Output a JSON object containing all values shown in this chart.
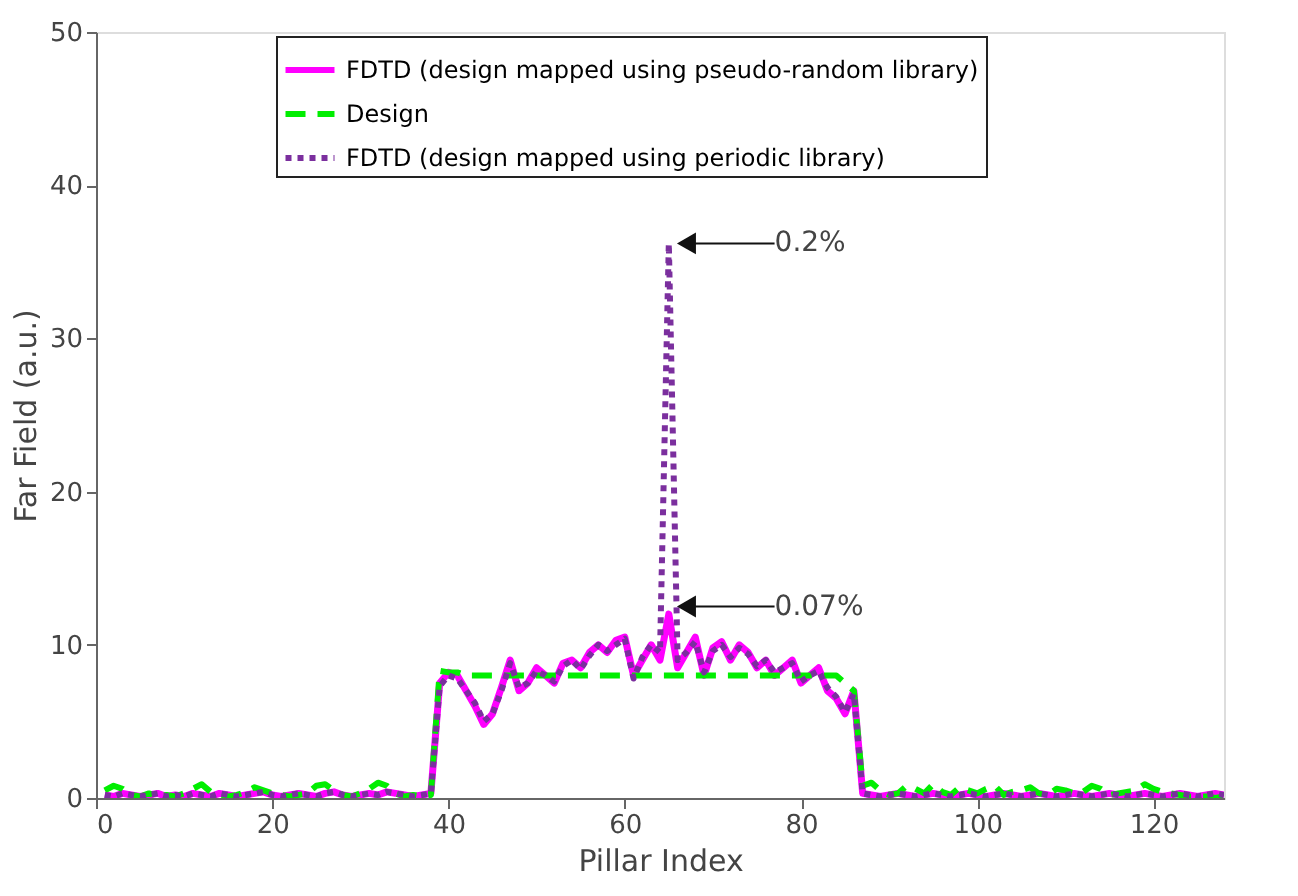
{
  "chart_data": {
    "type": "line",
    "xlabel": "Pillar Index",
    "ylabel": "Far Field (a.u.)",
    "xlim": [
      0,
      128
    ],
    "xticks": [
      0,
      20,
      40,
      60,
      80,
      100,
      120
    ],
    "ylim": [
      0,
      50
    ],
    "yticks": [
      0,
      10,
      20,
      30,
      40,
      50
    ],
    "grid": false,
    "legend": "top",
    "marker": "none",
    "x": [
      1,
      2,
      3,
      4,
      5,
      6,
      7,
      8,
      9,
      10,
      11,
      12,
      13,
      14,
      15,
      16,
      17,
      18,
      19,
      20,
      21,
      22,
      23,
      24,
      25,
      26,
      27,
      28,
      29,
      30,
      31,
      32,
      33,
      34,
      35,
      36,
      37,
      38,
      39,
      40,
      41,
      42,
      43,
      44,
      45,
      46,
      47,
      48,
      49,
      50,
      51,
      52,
      53,
      54,
      55,
      56,
      57,
      58,
      59,
      60,
      61,
      62,
      63,
      64,
      65,
      66,
      67,
      68,
      69,
      70,
      71,
      72,
      73,
      74,
      75,
      76,
      77,
      78,
      79,
      80,
      81,
      82,
      83,
      84,
      85,
      86,
      87,
      88,
      89,
      90,
      91,
      92,
      93,
      94,
      95,
      96,
      97,
      98,
      99,
      100,
      101,
      102,
      103,
      104,
      105,
      106,
      107,
      108,
      109,
      110,
      111,
      112,
      113,
      114,
      115,
      116,
      117,
      118,
      119,
      120,
      121,
      122,
      123,
      124,
      125,
      126,
      127,
      128
    ],
    "series": [
      {
        "name": "FDTD (design mapped using pseudo-random library)",
        "color": "#ff00ff",
        "line_style": "solid",
        "values": [
          0.2,
          0.1,
          0.3,
          0.2,
          0.1,
          0.2,
          0.3,
          0.1,
          0.2,
          0.1,
          0.3,
          0.2,
          0.1,
          0.3,
          0.2,
          0.1,
          0.2,
          0.3,
          0.4,
          0.2,
          0.1,
          0.2,
          0.3,
          0.2,
          0.1,
          0.3,
          0.4,
          0.2,
          0.1,
          0.2,
          0.3,
          0.2,
          0.4,
          0.3,
          0.2,
          0.1,
          0.2,
          0.3,
          7.5,
          8.2,
          8.0,
          7.0,
          6.0,
          4.8,
          5.5,
          7.2,
          9.0,
          7.0,
          7.5,
          8.5,
          8.0,
          7.5,
          8.8,
          9.0,
          8.5,
          9.5,
          10.0,
          9.5,
          10.3,
          10.5,
          8.0,
          9.0,
          10.0,
          9.0,
          12.0,
          8.5,
          9.5,
          10.5,
          8.0,
          9.8,
          10.2,
          9.0,
          10.0,
          9.5,
          8.5,
          9.0,
          8.0,
          8.5,
          9.0,
          7.5,
          8.0,
          8.5,
          7.0,
          6.5,
          5.5,
          7.0,
          0.3,
          0.2,
          0.1,
          0.2,
          0.3,
          0.2,
          0.1,
          0.2,
          0.3,
          0.2,
          0.1,
          0.2,
          0.3,
          0.2,
          0.1,
          0.2,
          0.3,
          0.2,
          0.1,
          0.2,
          0.3,
          0.2,
          0.1,
          0.2,
          0.3,
          0.2,
          0.1,
          0.2,
          0.3,
          0.2,
          0.1,
          0.2,
          0.3,
          0.2,
          0.1,
          0.2,
          0.3,
          0.2,
          0.1,
          0.2,
          0.3,
          0.2
        ]
      },
      {
        "name": "Design",
        "color": "#00ee00",
        "line_style": "dashed",
        "values": [
          0.5,
          0.8,
          0.6,
          0.2,
          0.1,
          0.3,
          0.1,
          0.2,
          0.1,
          0.3,
          0.6,
          0.9,
          0.4,
          0.2,
          0.1,
          0.2,
          0.4,
          0.7,
          0.5,
          0.3,
          0.2,
          0.1,
          0.2,
          0.3,
          0.8,
          0.9,
          0.5,
          0.2,
          0.1,
          0.3,
          0.6,
          1.0,
          0.8,
          0.3,
          0.1,
          0.2,
          0.1,
          0.2,
          8.3,
          8.2,
          8.2,
          8.0,
          8.0,
          8.0,
          8.0,
          8.0,
          8.0,
          8.0,
          8.0,
          8.0,
          8.0,
          8.0,
          8.0,
          8.0,
          8.0,
          8.0,
          8.0,
          8.0,
          8.0,
          8.0,
          8.0,
          8.0,
          8.0,
          8.0,
          8.0,
          8.0,
          8.0,
          8.0,
          8.0,
          8.0,
          8.0,
          8.0,
          8.0,
          8.0,
          8.0,
          8.0,
          8.0,
          8.0,
          8.0,
          8.0,
          8.0,
          8.0,
          8.0,
          8.0,
          7.5,
          7.0,
          0.8,
          1.0,
          0.5,
          0.2,
          0.3,
          0.8,
          0.6,
          0.3,
          0.9,
          0.4,
          0.2,
          0.7,
          0.5,
          0.3,
          0.6,
          0.8,
          0.2,
          0.4,
          0.5,
          0.7,
          0.3,
          0.2,
          0.6,
          0.5,
          0.3,
          0.4,
          0.8,
          0.6,
          0.2,
          0.3,
          0.4,
          0.5,
          0.9,
          0.6,
          0.4,
          0.3,
          0.2,
          0.1,
          0.1,
          0.1,
          0.0,
          0.1
        ]
      },
      {
        "name": "FDTD (design mapped using periodic library)",
        "color": "#7b2f9e",
        "line_style": "dotted",
        "values": [
          0.2,
          0.1,
          0.3,
          0.2,
          0.1,
          0.2,
          0.3,
          0.1,
          0.2,
          0.1,
          0.3,
          0.2,
          0.1,
          0.3,
          0.2,
          0.1,
          0.2,
          0.3,
          0.4,
          0.2,
          0.1,
          0.2,
          0.3,
          0.2,
          0.1,
          0.3,
          0.4,
          0.2,
          0.1,
          0.2,
          0.3,
          0.2,
          0.4,
          0.3,
          0.2,
          0.1,
          0.2,
          0.3,
          7.3,
          8.0,
          7.8,
          7.0,
          6.2,
          5.0,
          5.5,
          7.0,
          8.8,
          7.2,
          7.5,
          8.3,
          8.0,
          7.6,
          8.6,
          9.0,
          8.4,
          9.3,
          10.0,
          9.6,
          10.0,
          10.4,
          7.8,
          9.2,
          10.0,
          9.5,
          36.2,
          9.0,
          9.5,
          10.2,
          8.2,
          9.6,
          10.0,
          9.2,
          9.8,
          9.4,
          8.6,
          9.0,
          8.2,
          8.5,
          8.8,
          7.6,
          8.0,
          8.3,
          7.2,
          6.6,
          5.6,
          6.8,
          0.3,
          0.2,
          0.1,
          0.2,
          0.3,
          0.2,
          0.1,
          0.2,
          0.3,
          0.2,
          0.1,
          0.2,
          0.3,
          0.2,
          0.1,
          0.2,
          0.3,
          0.2,
          0.1,
          0.2,
          0.3,
          0.2,
          0.1,
          0.2,
          0.3,
          0.2,
          0.1,
          0.2,
          0.3,
          0.2,
          0.1,
          0.2,
          0.3,
          0.2,
          0.1,
          0.2,
          0.3,
          0.2,
          0.1,
          0.2,
          0.3,
          0.2
        ]
      }
    ],
    "annotations": [
      {
        "text": "0.2%",
        "x": 65,
        "y": 36.2
      },
      {
        "text": "0.07%",
        "x": 65,
        "y": 12.5
      }
    ]
  }
}
